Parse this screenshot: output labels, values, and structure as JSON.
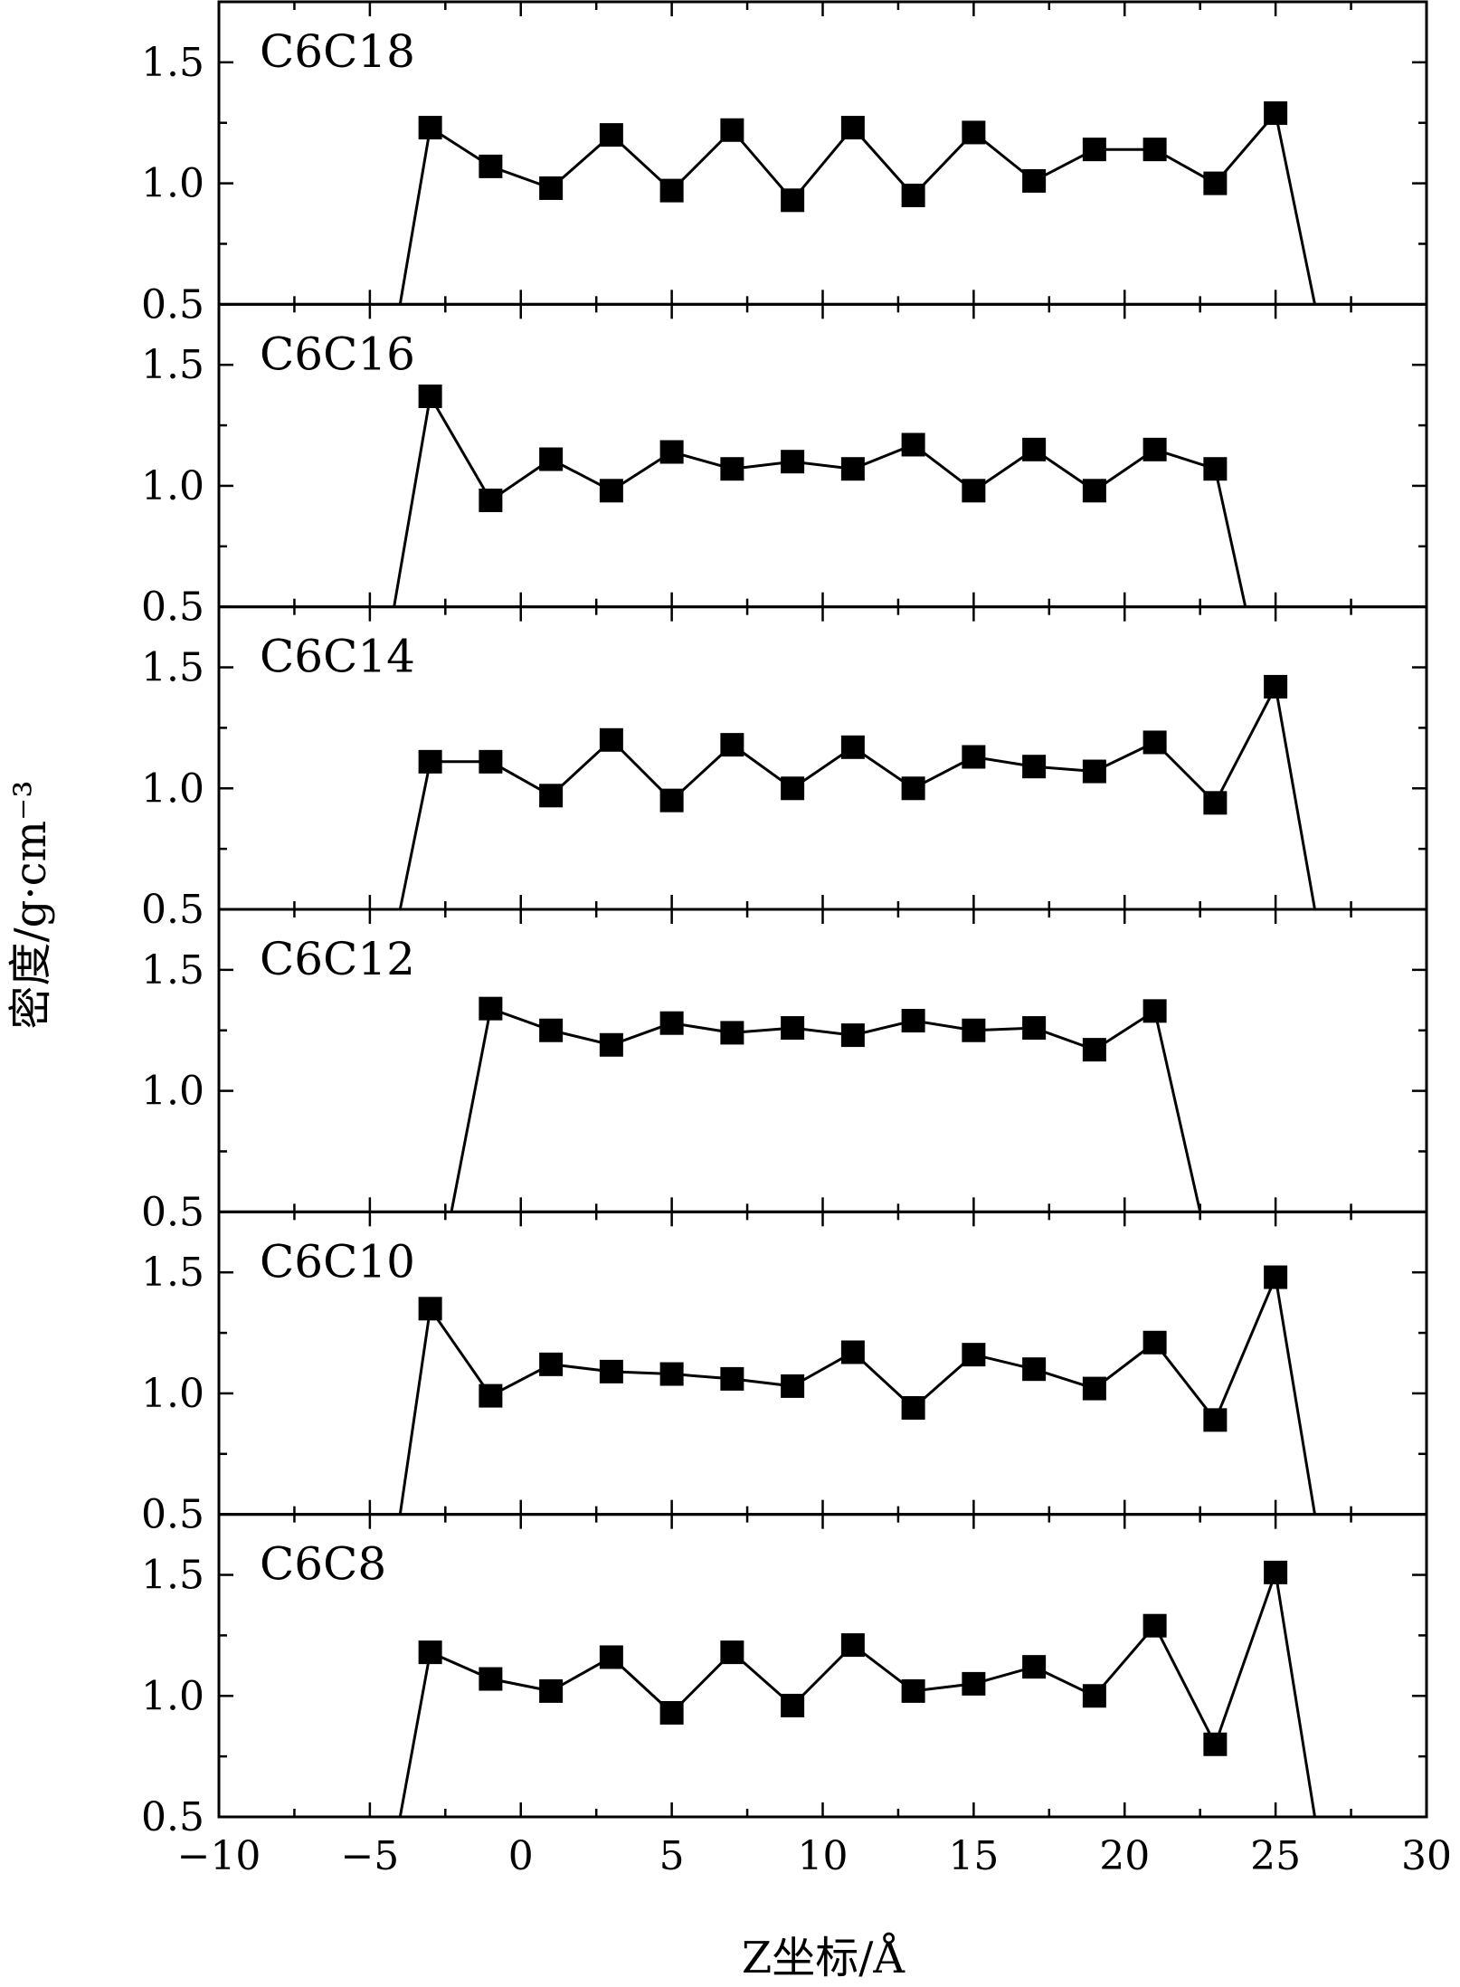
{
  "chart_data": {
    "type": "line",
    "xlabel": "Z坐标/Å",
    "ylabel": "密度/g·cm⁻³",
    "xlim": [
      -10,
      30
    ],
    "x_ticks": [
      -10,
      -5,
      0,
      5,
      10,
      15,
      20,
      25,
      30
    ],
    "x_tick_labels": [
      "−10",
      "−5",
      "0",
      "5",
      "10",
      "15",
      "20",
      "25",
      "30"
    ],
    "ylim": [
      0.5,
      1.75
    ],
    "y_ticks": [
      0.5,
      1.0,
      1.5
    ],
    "y_tick_labels": [
      "0.5",
      "1.0",
      "1.5"
    ],
    "marker": "square",
    "color": "#000000",
    "grid": false,
    "panels": [
      {
        "name": "C6C18",
        "edges": [
          -4.0,
          26.3
        ],
        "x": [
          -3,
          -1,
          1,
          3,
          5,
          7,
          9,
          11,
          13,
          15,
          17,
          19,
          21,
          23,
          25
        ],
        "y": [
          1.23,
          1.07,
          0.98,
          1.2,
          0.97,
          1.22,
          0.93,
          1.23,
          0.95,
          1.21,
          1.01,
          1.14,
          1.14,
          1.0,
          1.29
        ]
      },
      {
        "name": "C6C16",
        "edges": [
          -4.2,
          24.0
        ],
        "x": [
          -3,
          -1,
          1,
          3,
          5,
          7,
          9,
          11,
          13,
          15,
          17,
          19,
          21,
          23
        ],
        "y": [
          1.37,
          0.94,
          1.11,
          0.98,
          1.14,
          1.07,
          1.1,
          1.07,
          1.17,
          0.98,
          1.15,
          0.98,
          1.15,
          1.07
        ]
      },
      {
        "name": "C6C14",
        "edges": [
          -4.0,
          26.3
        ],
        "x": [
          -3,
          -1,
          1,
          3,
          5,
          7,
          9,
          11,
          13,
          15,
          17,
          19,
          21,
          23,
          25
        ],
        "y": [
          1.11,
          1.11,
          0.97,
          1.2,
          0.95,
          1.18,
          1.0,
          1.17,
          1.0,
          1.13,
          1.09,
          1.07,
          1.19,
          0.94,
          1.42
        ]
      },
      {
        "name": "C6C12",
        "edges": [
          -2.3,
          22.5
        ],
        "x": [
          -1,
          1,
          3,
          5,
          7,
          9,
          11,
          13,
          15,
          17,
          19,
          21
        ],
        "y": [
          1.34,
          1.25,
          1.19,
          1.28,
          1.24,
          1.26,
          1.23,
          1.29,
          1.25,
          1.26,
          1.17,
          1.33
        ]
      },
      {
        "name": "C6C10",
        "edges": [
          -4.0,
          26.3
        ],
        "x": [
          -3,
          -1,
          1,
          3,
          5,
          7,
          9,
          11,
          13,
          15,
          17,
          19,
          21,
          23,
          25
        ],
        "y": [
          1.35,
          0.99,
          1.12,
          1.09,
          1.08,
          1.06,
          1.03,
          1.17,
          0.94,
          1.16,
          1.1,
          1.02,
          1.21,
          0.89,
          1.48
        ]
      },
      {
        "name": "C6C8",
        "edges": [
          -4.0,
          26.3
        ],
        "x": [
          -3,
          -1,
          1,
          3,
          5,
          7,
          9,
          11,
          13,
          15,
          17,
          19,
          21,
          23,
          25
        ],
        "y": [
          1.18,
          1.07,
          1.02,
          1.16,
          0.93,
          1.18,
          0.96,
          1.21,
          1.02,
          1.05,
          1.12,
          1.0,
          1.29,
          0.8,
          1.51
        ]
      }
    ]
  }
}
